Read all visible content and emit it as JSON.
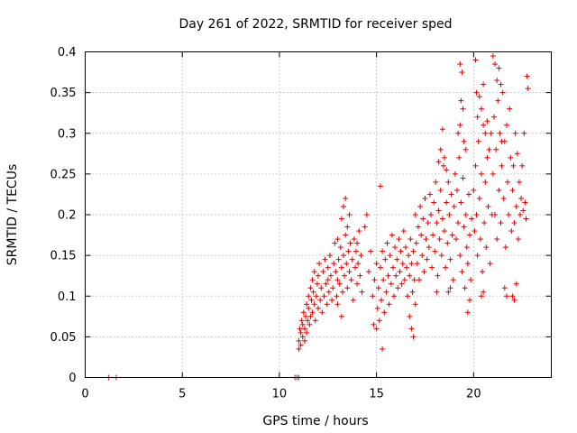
{
  "chart_data": {
    "type": "scatter",
    "title": "Day 261 of 2022, SRMTID for receiver sped",
    "xlabel": "GPS time / hours",
    "ylabel": "SRMTID / TECUs",
    "xlim": [
      0,
      24
    ],
    "ylim": [
      0,
      0.4
    ],
    "xticks": [
      0,
      5,
      10,
      15,
      20
    ],
    "xtick_labels": [
      "0",
      "5",
      "10",
      "15",
      "20"
    ],
    "yticks": [
      0,
      0.05,
      0.1,
      0.15,
      0.2,
      0.25,
      0.3,
      0.35,
      0.4
    ],
    "ytick_labels": [
      "0",
      "0.05",
      "0.1",
      "0.15",
      "0.2",
      "0.25",
      "0.3",
      "0.35",
      "0.4"
    ],
    "grid": true,
    "marker": "+",
    "color": "#e00000",
    "series": [
      {
        "name": "sped",
        "points": [
          [
            1.2,
            0.0
          ],
          [
            1.6,
            0.0
          ],
          [
            10.8,
            0.0
          ],
          [
            10.9,
            0.0
          ],
          [
            11.0,
            0.0
          ],
          [
            11.0,
            0.035
          ],
          [
            11.0,
            0.045
          ],
          [
            11.05,
            0.06
          ],
          [
            11.1,
            0.04
          ],
          [
            11.1,
            0.055
          ],
          [
            11.15,
            0.07
          ],
          [
            11.2,
            0.05
          ],
          [
            11.2,
            0.065
          ],
          [
            11.25,
            0.08
          ],
          [
            11.3,
            0.045
          ],
          [
            11.3,
            0.06
          ],
          [
            11.35,
            0.075
          ],
          [
            11.4,
            0.09
          ],
          [
            11.4,
            0.055
          ],
          [
            11.45,
            0.07
          ],
          [
            11.5,
            0.1
          ],
          [
            11.5,
            0.085
          ],
          [
            11.55,
            0.065
          ],
          [
            11.6,
            0.11
          ],
          [
            11.6,
            0.075
          ],
          [
            11.65,
            0.095
          ],
          [
            11.7,
            0.12
          ],
          [
            11.7,
            0.08
          ],
          [
            11.75,
            0.105
          ],
          [
            11.8,
            0.09
          ],
          [
            11.8,
            0.13
          ],
          [
            11.85,
            0.07
          ],
          [
            11.9,
            0.1
          ],
          [
            11.95,
            0.115
          ],
          [
            12.0,
            0.085
          ],
          [
            12.0,
            0.125
          ],
          [
            12.05,
            0.14
          ],
          [
            12.1,
            0.095
          ],
          [
            12.15,
            0.11
          ],
          [
            12.2,
            0.08
          ],
          [
            12.25,
            0.13
          ],
          [
            12.3,
            0.1
          ],
          [
            12.35,
            0.145
          ],
          [
            12.4,
            0.115
          ],
          [
            12.45,
            0.09
          ],
          [
            12.5,
            0.12
          ],
          [
            12.5,
            0.135
          ],
          [
            12.55,
            0.105
          ],
          [
            12.6,
            0.15
          ],
          [
            12.65,
            0.125
          ],
          [
            12.7,
            0.095
          ],
          [
            12.75,
            0.11
          ],
          [
            12.8,
            0.14
          ],
          [
            12.85,
            0.165
          ],
          [
            12.9,
            0.13
          ],
          [
            12.95,
            0.1
          ],
          [
            13.0,
            0.12
          ],
          [
            13.0,
            0.17
          ],
          [
            13.05,
            0.145
          ],
          [
            13.1,
            0.115
          ],
          [
            13.15,
            0.16
          ],
          [
            13.2,
            0.135
          ],
          [
            13.25,
            0.105
          ],
          [
            13.3,
            0.15
          ],
          [
            13.35,
            0.125
          ],
          [
            13.4,
            0.175
          ],
          [
            13.45,
            0.14
          ],
          [
            13.5,
            0.11
          ],
          [
            13.55,
            0.155
          ],
          [
            13.6,
            0.13
          ],
          [
            13.65,
            0.165
          ],
          [
            13.7,
            0.12
          ],
          [
            13.75,
            0.145
          ],
          [
            13.8,
            0.095
          ],
          [
            13.85,
            0.17
          ],
          [
            13.9,
            0.135
          ],
          [
            13.95,
            0.155
          ],
          [
            14.0,
            0.115
          ],
          [
            14.05,
            0.14
          ],
          [
            14.1,
            0.18
          ],
          [
            14.15,
            0.125
          ],
          [
            14.2,
            0.15
          ],
          [
            14.25,
            0.105
          ],
          [
            13.2,
            0.195
          ],
          [
            13.3,
            0.21
          ],
          [
            13.4,
            0.22
          ],
          [
            13.5,
            0.185
          ],
          [
            13.6,
            0.2
          ],
          [
            14.0,
            0.165
          ],
          [
            14.4,
            0.185
          ],
          [
            14.5,
            0.2
          ],
          [
            14.6,
            0.13
          ],
          [
            14.7,
            0.155
          ],
          [
            14.8,
            0.1
          ],
          [
            14.9,
            0.12
          ],
          [
            15.0,
            0.14
          ],
          [
            15.05,
            0.085
          ],
          [
            15.1,
            0.11
          ],
          [
            15.15,
            0.07
          ],
          [
            15.2,
            0.135
          ],
          [
            15.25,
            0.095
          ],
          [
            15.3,
            0.155
          ],
          [
            15.35,
            0.12
          ],
          [
            15.4,
            0.08
          ],
          [
            15.45,
            0.145
          ],
          [
            15.5,
            0.105
          ],
          [
            15.55,
            0.165
          ],
          [
            15.6,
            0.125
          ],
          [
            15.65,
            0.09
          ],
          [
            15.7,
            0.15
          ],
          [
            15.75,
            0.115
          ],
          [
            15.8,
            0.175
          ],
          [
            15.85,
            0.135
          ],
          [
            15.9,
            0.1
          ],
          [
            15.95,
            0.16
          ],
          [
            16.0,
            0.125
          ],
          [
            16.05,
            0.145
          ],
          [
            16.1,
            0.11
          ],
          [
            16.15,
            0.17
          ],
          [
            16.2,
            0.13
          ],
          [
            16.25,
            0.155
          ],
          [
            16.3,
            0.115
          ],
          [
            16.35,
            0.14
          ],
          [
            16.4,
            0.18
          ],
          [
            16.45,
            0.12
          ],
          [
            16.5,
            0.16
          ],
          [
            16.55,
            0.135
          ],
          [
            16.6,
            0.1
          ],
          [
            16.65,
            0.15
          ],
          [
            16.7,
            0.125
          ],
          [
            16.75,
            0.17
          ],
          [
            16.8,
            0.14
          ],
          [
            16.85,
            0.105
          ],
          [
            16.9,
            0.155
          ],
          [
            16.95,
            0.12
          ],
          [
            15.3,
            0.035
          ],
          [
            15.2,
            0.235
          ],
          [
            14.85,
            0.065
          ],
          [
            15.0,
            0.06
          ],
          [
            16.7,
            0.075
          ],
          [
            16.8,
            0.06
          ],
          [
            16.9,
            0.05
          ],
          [
            17.0,
            0.09
          ],
          [
            13.2,
            0.075
          ],
          [
            13.0,
            0.09
          ],
          [
            17.0,
            0.2
          ],
          [
            17.05,
            0.165
          ],
          [
            17.1,
            0.14
          ],
          [
            17.15,
            0.185
          ],
          [
            17.2,
            0.12
          ],
          [
            17.25,
            0.21
          ],
          [
            17.3,
            0.175
          ],
          [
            17.35,
            0.15
          ],
          [
            17.4,
            0.195
          ],
          [
            17.45,
            0.13
          ],
          [
            17.5,
            0.22
          ],
          [
            17.55,
            0.17
          ],
          [
            17.6,
            0.145
          ],
          [
            17.65,
            0.19
          ],
          [
            17.7,
            0.16
          ],
          [
            17.75,
            0.225
          ],
          [
            17.8,
            0.2
          ],
          [
            17.85,
            0.135
          ],
          [
            17.9,
            0.175
          ],
          [
            17.95,
            0.215
          ],
          [
            18.0,
            0.155
          ],
          [
            18.05,
            0.24
          ],
          [
            18.1,
            0.19
          ],
          [
            18.15,
            0.125
          ],
          [
            18.2,
            0.205
          ],
          [
            18.25,
            0.17
          ],
          [
            18.3,
            0.23
          ],
          [
            18.35,
            0.15
          ],
          [
            18.4,
            0.195
          ],
          [
            18.45,
            0.26
          ],
          [
            18.5,
            0.18
          ],
          [
            18.55,
            0.135
          ],
          [
            18.6,
            0.215
          ],
          [
            18.65,
            0.165
          ],
          [
            18.7,
            0.24
          ],
          [
            18.75,
            0.2
          ],
          [
            18.8,
            0.145
          ],
          [
            18.85,
            0.225
          ],
          [
            18.9,
            0.175
          ],
          [
            18.95,
            0.12
          ],
          [
            18.2,
            0.265
          ],
          [
            18.3,
            0.28
          ],
          [
            18.4,
            0.305
          ],
          [
            18.5,
            0.27
          ],
          [
            18.6,
            0.255
          ],
          [
            18.7,
            0.105
          ],
          [
            18.8,
            0.11
          ],
          [
            18.1,
            0.105
          ],
          [
            19.0,
            0.21
          ],
          [
            19.05,
            0.25
          ],
          [
            19.1,
            0.17
          ],
          [
            19.15,
            0.23
          ],
          [
            19.2,
            0.19
          ],
          [
            19.25,
            0.27
          ],
          [
            19.3,
            0.15
          ],
          [
            19.35,
            0.215
          ],
          [
            19.4,
            0.13
          ],
          [
            19.45,
            0.245
          ],
          [
            19.5,
            0.185
          ],
          [
            19.55,
            0.11
          ],
          [
            19.6,
            0.2
          ],
          [
            19.65,
            0.16
          ],
          [
            19.7,
            0.14
          ],
          [
            19.75,
            0.225
          ],
          [
            19.8,
            0.175
          ],
          [
            19.85,
            0.12
          ],
          [
            19.9,
            0.195
          ],
          [
            19.3,
            0.385
          ],
          [
            19.4,
            0.375
          ],
          [
            19.35,
            0.34
          ],
          [
            19.45,
            0.33
          ],
          [
            19.5,
            0.29
          ],
          [
            19.6,
            0.28
          ],
          [
            19.2,
            0.3
          ],
          [
            19.3,
            0.31
          ],
          [
            19.7,
            0.08
          ],
          [
            19.8,
            0.095
          ],
          [
            20.0,
            0.23
          ],
          [
            20.05,
            0.18
          ],
          [
            20.1,
            0.26
          ],
          [
            20.15,
            0.2
          ],
          [
            20.2,
            0.15
          ],
          [
            20.25,
            0.29
          ],
          [
            20.3,
            0.22
          ],
          [
            20.35,
            0.17
          ],
          [
            20.4,
            0.25
          ],
          [
            20.45,
            0.13
          ],
          [
            20.5,
            0.31
          ],
          [
            20.55,
            0.19
          ],
          [
            20.6,
            0.24
          ],
          [
            20.65,
            0.16
          ],
          [
            20.7,
            0.27
          ],
          [
            20.75,
            0.21
          ],
          [
            20.8,
            0.28
          ],
          [
            20.85,
            0.14
          ],
          [
            20.9,
            0.3
          ],
          [
            20.95,
            0.2
          ],
          [
            20.1,
            0.39
          ],
          [
            20.15,
            0.35
          ],
          [
            20.2,
            0.32
          ],
          [
            20.3,
            0.345
          ],
          [
            20.4,
            0.33
          ],
          [
            20.5,
            0.36
          ],
          [
            20.6,
            0.3
          ],
          [
            20.7,
            0.315
          ],
          [
            20.4,
            0.1
          ],
          [
            20.5,
            0.105
          ],
          [
            21.0,
            0.25
          ],
          [
            21.05,
            0.32
          ],
          [
            21.1,
            0.2
          ],
          [
            21.15,
            0.28
          ],
          [
            21.2,
            0.17
          ],
          [
            21.25,
            0.34
          ],
          [
            21.3,
            0.23
          ],
          [
            21.35,
            0.3
          ],
          [
            21.4,
            0.19
          ],
          [
            21.45,
            0.26
          ],
          [
            21.5,
            0.35
          ],
          [
            21.55,
            0.22
          ],
          [
            21.6,
            0.29
          ],
          [
            21.65,
            0.16
          ],
          [
            21.7,
            0.31
          ],
          [
            21.75,
            0.24
          ],
          [
            21.8,
            0.2
          ],
          [
            21.85,
            0.33
          ],
          [
            21.9,
            0.27
          ],
          [
            21.95,
            0.18
          ],
          [
            21.0,
            0.395
          ],
          [
            21.1,
            0.385
          ],
          [
            21.2,
            0.365
          ],
          [
            21.3,
            0.38
          ],
          [
            21.4,
            0.36
          ],
          [
            21.45,
            0.29
          ],
          [
            22.0,
            0.23
          ],
          [
            22.05,
            0.26
          ],
          [
            22.1,
            0.19
          ],
          [
            22.15,
            0.3
          ],
          [
            22.2,
            0.21
          ],
          [
            22.25,
            0.275
          ],
          [
            22.3,
            0.17
          ],
          [
            22.35,
            0.24
          ],
          [
            22.4,
            0.2
          ],
          [
            22.45,
            0.22
          ],
          [
            22.5,
            0.26
          ],
          [
            22.55,
            0.205
          ],
          [
            22.6,
            0.3
          ],
          [
            22.65,
            0.215
          ],
          [
            22.7,
            0.195
          ],
          [
            22.75,
            0.37
          ],
          [
            22.8,
            0.355
          ],
          [
            22.0,
            0.1
          ],
          [
            22.1,
            0.095
          ],
          [
            22.2,
            0.115
          ],
          [
            21.6,
            0.11
          ],
          [
            21.7,
            0.1
          ]
        ]
      }
    ]
  }
}
